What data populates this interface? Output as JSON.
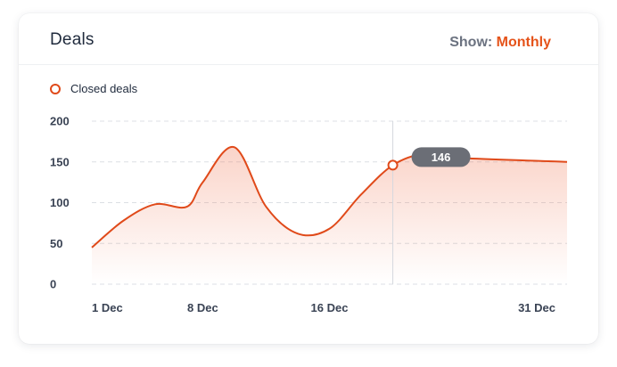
{
  "card": {
    "title": "Deals",
    "show_label": "Show:",
    "show_value": "Monthly"
  },
  "colors": {
    "line": "#e04a1a",
    "accent": "#e5531a",
    "tooltip_bg": "#6b6e76"
  },
  "chart_data": {
    "type": "area",
    "title": "",
    "xlabel": "",
    "ylabel": "",
    "legend_position": "top-left",
    "grid": true,
    "x": [
      1,
      3,
      5,
      7,
      8,
      10,
      12,
      14,
      16,
      18,
      20,
      22,
      24,
      31
    ],
    "xlim": [
      1,
      31
    ],
    "ylim": [
      0,
      200
    ],
    "yticks": [
      200,
      150,
      100,
      50,
      0
    ],
    "x_tick_labels": [
      {
        "x": 1,
        "label": "1 Dec"
      },
      {
        "x": 8,
        "label": "8 Dec"
      },
      {
        "x": 16,
        "label": "16 Dec"
      },
      {
        "x": 31,
        "label": "31 Dec"
      }
    ],
    "series": [
      {
        "name": "Closed deals",
        "values": [
          45,
          78,
          98,
          95,
          125,
          168,
          95,
          62,
          68,
          110,
          146,
          160,
          155,
          150
        ]
      }
    ],
    "highlight": {
      "x": 20,
      "value": 146,
      "label": "146"
    }
  }
}
